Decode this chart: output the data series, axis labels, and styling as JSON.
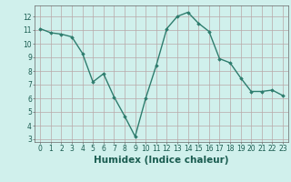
{
  "x": [
    0,
    1,
    2,
    3,
    4,
    5,
    6,
    7,
    8,
    9,
    10,
    11,
    12,
    13,
    14,
    15,
    16,
    17,
    18,
    19,
    20,
    21,
    22,
    23
  ],
  "y": [
    11.1,
    10.8,
    10.7,
    10.5,
    9.3,
    7.2,
    7.8,
    6.1,
    4.7,
    3.2,
    6.0,
    8.4,
    11.1,
    12.0,
    12.3,
    11.5,
    10.9,
    8.9,
    8.6,
    7.5,
    6.5,
    6.5,
    6.6,
    6.2
  ],
  "line_color": "#2e7d6e",
  "marker": "D",
  "marker_size": 1.8,
  "line_width": 1.0,
  "bg_color": "#d0f0ec",
  "grid_color": "#b8a8a8",
  "xlabel": "Humidex (Indice chaleur)",
  "ylabel": "",
  "xlim": [
    -0.5,
    23.5
  ],
  "ylim": [
    2.8,
    12.8
  ],
  "yticks": [
    3,
    4,
    5,
    6,
    7,
    8,
    9,
    10,
    11,
    12
  ],
  "xticks": [
    0,
    1,
    2,
    3,
    4,
    5,
    6,
    7,
    8,
    9,
    10,
    11,
    12,
    13,
    14,
    15,
    16,
    17,
    18,
    19,
    20,
    21,
    22,
    23
  ],
  "tick_label_fontsize": 5.5,
  "xlabel_fontsize": 7.5
}
